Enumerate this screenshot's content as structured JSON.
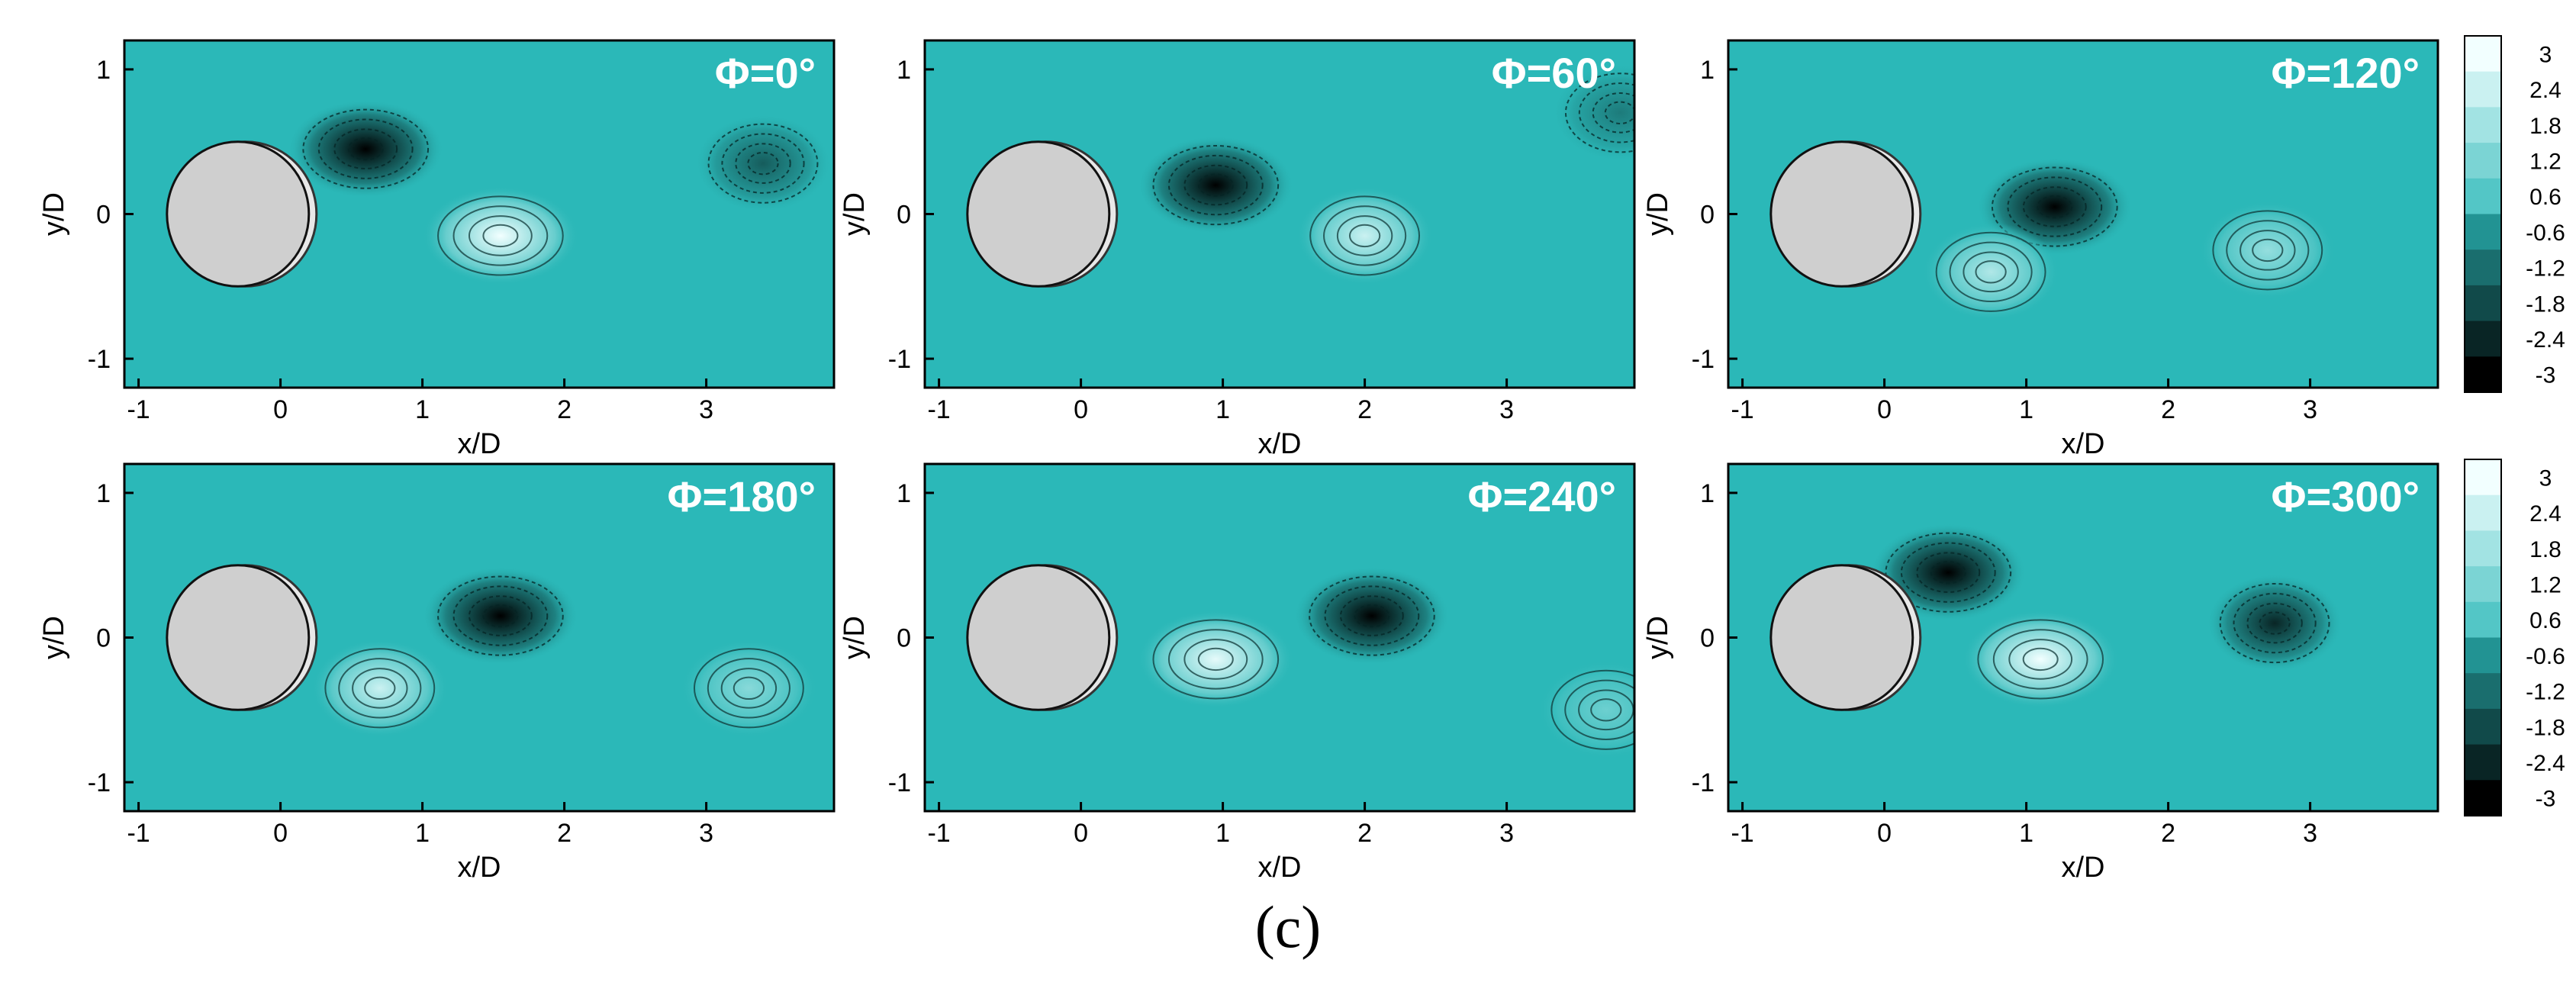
{
  "figure": {
    "caption": "(c)",
    "colors": {
      "background_fluid": "#2bb8b8",
      "cylinder_fill": "#cfcfcf",
      "positive_peak": "#f2ffff",
      "negative_peak": "#000000"
    }
  },
  "chart_data": [
    {
      "type": "heatmap",
      "title": "Φ=0°",
      "xlabel": "x/D",
      "ylabel": "y/D",
      "xlim": [
        -1.1,
        3.9
      ],
      "ylim": [
        -1.2,
        1.2
      ],
      "xticks": [
        "-1",
        "0",
        "1",
        "2",
        "3"
      ],
      "yticks": [
        "-1",
        "0",
        "1"
      ],
      "cylinder": {
        "cx": -0.3,
        "cy": 0,
        "diameter": 1
      },
      "vortices": [
        {
          "sign": -1,
          "cx": 0.6,
          "cy": 0.45,
          "peak": -3
        },
        {
          "sign": 1,
          "cx": 1.55,
          "cy": -0.15,
          "peak": 3
        },
        {
          "sign": -1,
          "cx": 3.4,
          "cy": 0.35,
          "peak": -1.5
        }
      ]
    },
    {
      "type": "heatmap",
      "title": "Φ=60°",
      "xlabel": "x/D",
      "ylabel": "y/D",
      "xlim": [
        -1.1,
        3.9
      ],
      "ylim": [
        -1.2,
        1.2
      ],
      "xticks": [
        "-1",
        "0",
        "1",
        "2",
        "3"
      ],
      "yticks": [
        "-1",
        "0",
        "1"
      ],
      "cylinder": {
        "cx": -0.3,
        "cy": 0,
        "diameter": 1
      },
      "vortices": [
        {
          "sign": -1,
          "cx": 0.95,
          "cy": 0.2,
          "peak": -3
        },
        {
          "sign": 1,
          "cx": 2.0,
          "cy": -0.15,
          "peak": 2.4
        },
        {
          "sign": -1,
          "cx": 3.8,
          "cy": 0.7,
          "peak": -1
        }
      ]
    },
    {
      "type": "heatmap",
      "title": "Φ=120°",
      "xlabel": "x/D",
      "ylabel": "y/D",
      "xlim": [
        -1.1,
        3.9
      ],
      "ylim": [
        -1.2,
        1.2
      ],
      "xticks": [
        "-1",
        "0",
        "1",
        "2",
        "3"
      ],
      "yticks": [
        "-1",
        "0",
        "1"
      ],
      "cylinder": {
        "cx": -0.3,
        "cy": 0,
        "diameter": 1
      },
      "vortices": [
        {
          "sign": -1,
          "cx": 1.2,
          "cy": 0.05,
          "peak": -3
        },
        {
          "sign": 1,
          "cx": 0.75,
          "cy": -0.4,
          "peak": 2
        },
        {
          "sign": 1,
          "cx": 2.7,
          "cy": -0.25,
          "peak": 1.6
        }
      ]
    },
    {
      "type": "heatmap",
      "title": "Φ=180°",
      "xlabel": "x/D",
      "ylabel": "y/D",
      "xlim": [
        -1.1,
        3.9
      ],
      "ylim": [
        -1.2,
        1.2
      ],
      "xticks": [
        "-1",
        "0",
        "1",
        "2",
        "3"
      ],
      "yticks": [
        "-1",
        "0",
        "1"
      ],
      "cylinder": {
        "cx": -0.3,
        "cy": 0,
        "diameter": 1
      },
      "vortices": [
        {
          "sign": -1,
          "cx": 1.55,
          "cy": 0.15,
          "peak": -3
        },
        {
          "sign": 1,
          "cx": 0.7,
          "cy": -0.35,
          "peak": 2.4
        },
        {
          "sign": 1,
          "cx": 3.3,
          "cy": -0.35,
          "peak": 1.4
        }
      ]
    },
    {
      "type": "heatmap",
      "title": "Φ=240°",
      "xlabel": "x/D",
      "ylabel": "y/D",
      "xlim": [
        -1.1,
        3.9
      ],
      "ylim": [
        -1.2,
        1.2
      ],
      "xticks": [
        "-1",
        "0",
        "1",
        "2",
        "3"
      ],
      "yticks": [
        "-1",
        "0",
        "1"
      ],
      "cylinder": {
        "cx": -0.3,
        "cy": 0,
        "diameter": 1
      },
      "vortices": [
        {
          "sign": -1,
          "cx": 2.05,
          "cy": 0.15,
          "peak": -3
        },
        {
          "sign": 1,
          "cx": 0.95,
          "cy": -0.15,
          "peak": 2.8
        },
        {
          "sign": 1,
          "cx": 3.7,
          "cy": -0.5,
          "peak": 1
        }
      ]
    },
    {
      "type": "heatmap",
      "title": "Φ=300°",
      "xlabel": "x/D",
      "ylabel": "y/D",
      "xlim": [
        -1.1,
        3.9
      ],
      "ylim": [
        -1.2,
        1.2
      ],
      "xticks": [
        "-1",
        "0",
        "1",
        "2",
        "3"
      ],
      "yticks": [
        "-1",
        "0",
        "1"
      ],
      "cylinder": {
        "cx": -0.3,
        "cy": 0,
        "diameter": 1
      },
      "vortices": [
        {
          "sign": -1,
          "cx": 0.45,
          "cy": 0.45,
          "peak": -3
        },
        {
          "sign": 1,
          "cx": 1.1,
          "cy": -0.15,
          "peak": 3
        },
        {
          "sign": -1,
          "cx": 2.75,
          "cy": 0.1,
          "peak": -2.4
        }
      ]
    }
  ],
  "colorbar": {
    "levels": [
      "3",
      "2.4",
      "1.8",
      "1.2",
      "0.6",
      "-0.6",
      "-1.2",
      "-1.8",
      "-2.4",
      "-3"
    ],
    "range": [
      -3,
      3
    ]
  }
}
